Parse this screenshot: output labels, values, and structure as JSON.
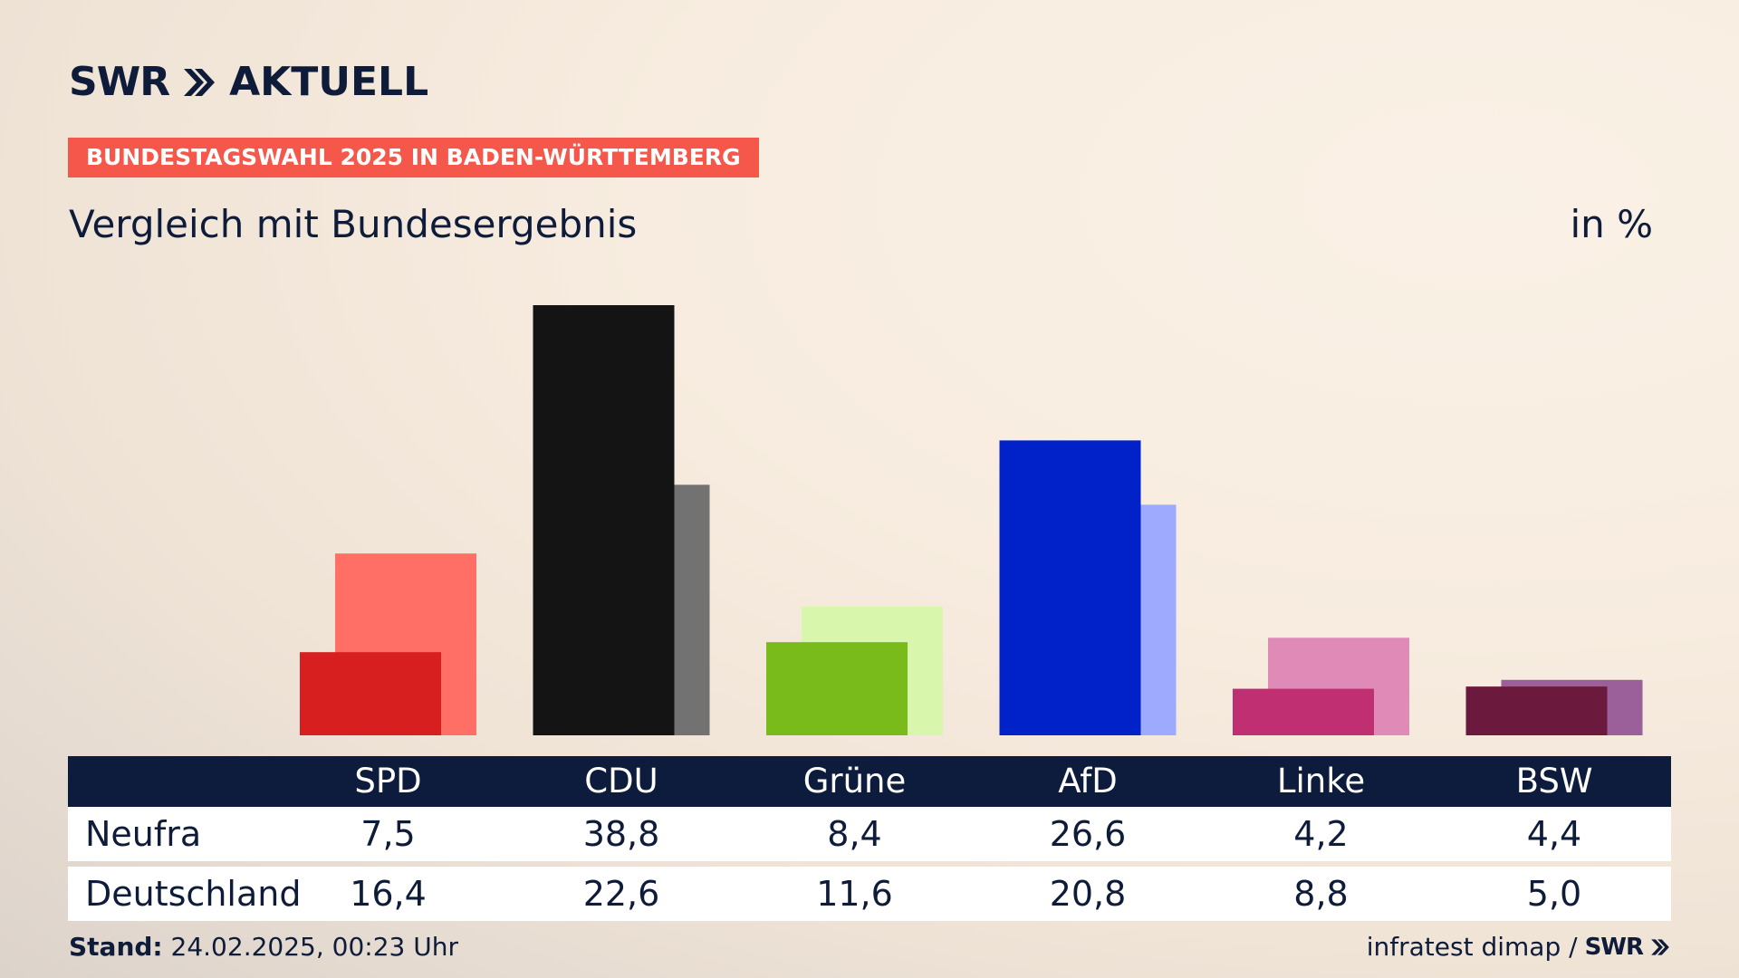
{
  "logo": {
    "brand": "SWR",
    "name": "AKTUELL"
  },
  "banner": "BUNDESTAGSWAHL 2025 IN BADEN-WÜRTTEMBERG",
  "subtitle": "Vergleich mit Bundesergebnis",
  "unit": "in %",
  "chart_data": {
    "type": "bar",
    "categories": [
      "SPD",
      "CDU",
      "Grüne",
      "AfD",
      "Linke",
      "BSW"
    ],
    "series": [
      {
        "name": "Neufra",
        "values": [
          7.5,
          38.8,
          8.4,
          26.6,
          4.2,
          4.4
        ],
        "colors": [
          "#d81f1f",
          "#141414",
          "#78bb1b",
          "#0022c8",
          "#bf2f72",
          "#6b1a3e"
        ]
      },
      {
        "name": "Deutschland",
        "values": [
          16.4,
          22.6,
          11.6,
          20.8,
          8.8,
          5.0
        ],
        "colors": [
          "#ff6f66",
          "#737272",
          "#d9f6ad",
          "#9eaafd",
          "#e08ab8",
          "#9b5f99"
        ]
      }
    ],
    "ylim": [
      0,
      40
    ]
  },
  "table": {
    "header_bg": "#0d1c3d",
    "rows": [
      {
        "label": "Neufra",
        "values": [
          "7,5",
          "38,8",
          "8,4",
          "26,6",
          "4,2",
          "4,4"
        ]
      },
      {
        "label": "Deutschland",
        "values": [
          "16,4",
          "22,6",
          "11,6",
          "20,8",
          "8,8",
          "5,0"
        ]
      }
    ]
  },
  "footer": {
    "stand_label": "Stand:",
    "stand_value": "24.02.2025, 00:23 Uhr",
    "source": "infratest dimap /",
    "source_brand": "SWR"
  }
}
